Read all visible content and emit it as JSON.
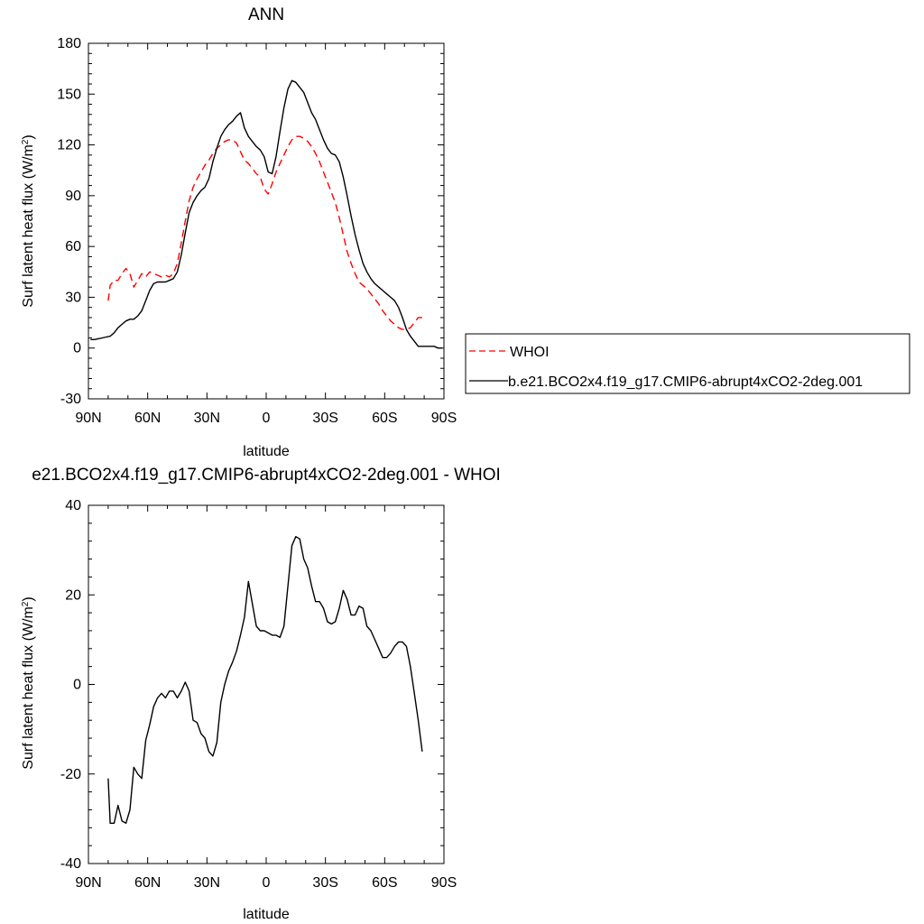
{
  "chart_data": [
    {
      "type": "line",
      "title": "ANN",
      "xlabel": "latitude",
      "ylabel": "Surf latent heat flux (W/m",
      "ylabel_sup": "2",
      "ylabel_close": ")",
      "xlim": [
        90,
        -90
      ],
      "ylim": [
        -30,
        180
      ],
      "xticks": [
        90,
        60,
        30,
        0,
        -30,
        -60,
        -90
      ],
      "xtick_labels": [
        "90N",
        "60N",
        "30N",
        "0",
        "30S",
        "60S",
        "90S"
      ],
      "yticks": [
        -30,
        0,
        30,
        60,
        90,
        120,
        150,
        180
      ],
      "ytick_labels": [
        "-30",
        "0",
        "30",
        "60",
        "90",
        "120",
        "150",
        "180"
      ],
      "grid": false,
      "legend": "right",
      "series": [
        {
          "name": "WHOI",
          "color": "#ff0000",
          "dash": "dashed",
          "x": [
            80,
            79,
            77,
            75,
            73,
            71,
            69,
            67,
            65,
            63,
            61,
            59,
            57,
            55,
            53,
            51,
            49,
            47,
            45,
            43,
            41,
            39,
            37,
            35,
            33,
            31,
            29,
            27,
            25,
            23,
            21,
            19,
            17,
            15,
            13,
            11,
            9,
            7,
            5,
            3,
            1,
            -1,
            -3,
            -5,
            -7,
            -9,
            -11,
            -13,
            -15,
            -17,
            -19,
            -21,
            -23,
            -25,
            -27,
            -29,
            -31,
            -33,
            -35,
            -37,
            -39,
            -41,
            -43,
            -45,
            -47,
            -49,
            -51,
            -53,
            -55,
            -57,
            -59,
            -61,
            -63,
            -65,
            -67,
            -69,
            -71,
            -73,
            -75,
            -77,
            -79
          ],
          "y": [
            28,
            37,
            40,
            40,
            44,
            47,
            44,
            36,
            40,
            44,
            42,
            45,
            44,
            43,
            42,
            43,
            42,
            44,
            50,
            62,
            75,
            87,
            95,
            100,
            104,
            108,
            111,
            115,
            118,
            120,
            122,
            123,
            123,
            121,
            116,
            111,
            109,
            106,
            103,
            101,
            94,
            91,
            97,
            104,
            109,
            114,
            119,
            123,
            125,
            125,
            124,
            122,
            119,
            115,
            110,
            104,
            98,
            92,
            86,
            77,
            67,
            57,
            50,
            44,
            39,
            37,
            35,
            32,
            29,
            26,
            22,
            19,
            16,
            14,
            12,
            11,
            11,
            12,
            15,
            18,
            18
          ]
        },
        {
          "name": "b.e21.BCO2x4.f19_g17.CMIP6-abrupt4xCO2-2deg.001",
          "color": "#000000",
          "dash": "solid",
          "x": [
            89,
            87,
            85,
            83,
            81,
            79,
            77,
            75,
            73,
            71,
            69,
            67,
            65,
            63,
            61,
            59,
            57,
            55,
            53,
            51,
            49,
            47,
            45,
            43,
            41,
            39,
            37,
            35,
            33,
            31,
            29,
            27,
            25,
            23,
            21,
            19,
            17,
            15,
            13,
            11,
            9,
            7,
            5,
            3,
            1,
            -1,
            -3,
            -5,
            -7,
            -9,
            -11,
            -13,
            -15,
            -17,
            -19,
            -21,
            -23,
            -25,
            -27,
            -29,
            -31,
            -33,
            -35,
            -37,
            -39,
            -41,
            -43,
            -45,
            -47,
            -49,
            -51,
            -53,
            -55,
            -57,
            -59,
            -61,
            -63,
            -65,
            -67,
            -69,
            -71,
            -73,
            -75,
            -77,
            -79,
            -81,
            -83,
            -85,
            -87,
            -89
          ],
          "y": [
            5,
            5,
            5.5,
            6,
            6.5,
            7,
            9,
            12,
            14,
            16,
            17,
            17,
            19,
            22,
            28,
            34,
            38,
            39,
            39,
            39,
            40,
            41,
            45,
            55,
            68,
            80,
            86,
            90,
            93,
            95,
            100,
            110,
            118,
            125,
            129,
            132,
            134,
            137,
            139,
            130,
            125,
            122,
            119,
            117,
            113,
            104,
            103,
            113,
            128,
            142,
            153,
            158,
            157,
            154,
            151,
            145,
            139,
            135,
            129,
            123,
            118,
            115,
            114,
            110,
            101,
            90,
            78,
            67,
            58,
            50,
            45,
            41,
            38,
            36,
            34,
            32,
            30,
            28,
            24,
            18,
            11,
            7,
            4,
            1,
            1,
            1,
            1,
            1,
            0,
            0
          ]
        }
      ]
    },
    {
      "type": "line",
      "title": "e21.BCO2x4.f19_g17.CMIP6-abrupt4xCO2-2deg.001 - WHOI",
      "xlabel": "latitude",
      "ylabel": "Surf latent heat flux (W/m",
      "ylabel_sup": "2",
      "ylabel_close": ")",
      "xlim": [
        90,
        -90
      ],
      "ylim": [
        -40,
        40
      ],
      "xticks": [
        90,
        60,
        30,
        0,
        -30,
        -60,
        -90
      ],
      "xtick_labels": [
        "90N",
        "60N",
        "30N",
        "0",
        "30S",
        "60S",
        "90S"
      ],
      "yticks": [
        -40,
        -20,
        0,
        20,
        40
      ],
      "ytick_labels": [
        "-40",
        "-20",
        "0",
        "20",
        "40"
      ],
      "grid": false,
      "legend": "none",
      "series": [
        {
          "color": "#000000",
          "dash": "solid",
          "x": [
            80,
            79,
            77,
            75,
            73,
            71,
            69,
            67,
            65,
            63,
            61,
            59,
            57,
            55,
            53,
            51,
            49,
            47,
            45,
            43,
            41,
            39,
            37,
            35,
            33,
            31,
            29,
            27,
            25,
            23,
            21,
            19,
            17,
            15,
            13,
            11,
            9,
            7,
            5,
            3,
            1,
            -1,
            -3,
            -5,
            -7,
            -9,
            -11,
            -13,
            -15,
            -17,
            -19,
            -21,
            -23,
            -25,
            -27,
            -29,
            -31,
            -33,
            -35,
            -37,
            -39,
            -41,
            -43,
            -45,
            -47,
            -49,
            -51,
            -53,
            -55,
            -57,
            -59,
            -61,
            -63,
            -65,
            -67,
            -69,
            -71,
            -73,
            -75,
            -77,
            -79
          ],
          "y": [
            -21,
            -31,
            -31,
            -27,
            -30.5,
            -31,
            -28,
            -18.5,
            -20,
            -21,
            -12.5,
            -9,
            -5,
            -3,
            -2,
            -3,
            -1.5,
            -1.5,
            -3,
            -1.5,
            0.5,
            -1.5,
            -8,
            -8.5,
            -11,
            -12,
            -15,
            -16,
            -13,
            -4,
            0,
            3,
            5,
            7.5,
            11,
            15,
            23,
            18,
            13,
            12,
            12,
            11.5,
            11,
            11,
            10.5,
            13,
            22,
            31,
            33,
            32.5,
            28,
            26,
            22,
            18.5,
            18.5,
            17,
            14,
            13.5,
            14,
            17,
            21,
            19,
            15.5,
            15.5,
            17.5,
            17,
            13,
            12,
            10,
            8,
            6,
            6,
            7,
            8.5,
            9.5,
            9.5,
            8.5,
            4,
            -2,
            -8,
            -15
          ]
        }
      ]
    }
  ]
}
